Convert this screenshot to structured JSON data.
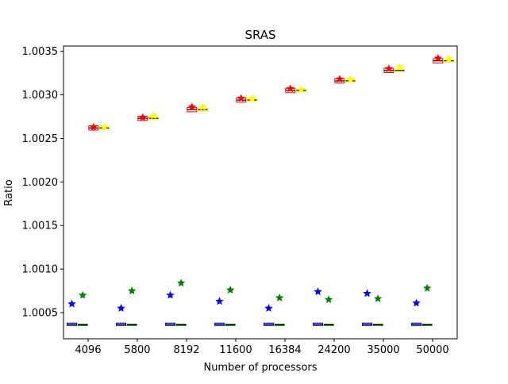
{
  "chart_data": {
    "type": "box",
    "title": "SRAS",
    "xlabel": "Number of processors",
    "ylabel": "Ratio",
    "categories": [
      "4096",
      "5800",
      "8192",
      "11600",
      "16384",
      "24200",
      "35000",
      "50000"
    ],
    "ylim": [
      1.0002,
      1.00356
    ],
    "yticks": [
      1.0005,
      1.001,
      1.0015,
      1.002,
      1.0025,
      1.003,
      1.0035
    ],
    "ytick_labels": [
      "1.0005",
      "1.0010",
      "1.0015",
      "1.0020",
      "1.0025",
      "1.0030",
      "1.0035"
    ],
    "grid": false,
    "series": [
      {
        "color": "#0000ff",
        "offset": -0.33,
        "box_median": [
          1.000366,
          1.000366,
          1.000366,
          1.000366,
          1.000366,
          1.000366,
          1.000366,
          1.000366
        ],
        "box_half_range": 1.4e-05,
        "outlier": [
          1.0006,
          1.00055,
          1.0007,
          1.00063,
          1.00055,
          1.00074,
          1.00072,
          1.00061
        ]
      },
      {
        "color": "#008000",
        "offset": -0.11,
        "box_median": [
          1.00036,
          1.00036,
          1.00036,
          1.00036,
          1.00036,
          1.00036,
          1.00036,
          1.00036
        ],
        "box_half_range": 8e-06,
        "outlier": [
          1.0007,
          1.00075,
          1.00084,
          1.00076,
          1.00067,
          1.00065,
          1.00066,
          1.00078
        ]
      },
      {
        "color": "#ff0000",
        "offset": 0.11,
        "box_median": [
          1.00262,
          1.00273,
          1.00283,
          1.00294,
          1.00305,
          1.00316,
          1.00328,
          1.00339
        ],
        "box_half_range": 2.5e-05,
        "outlier": [
          1.00263,
          1.00274,
          1.00286,
          1.00296,
          1.00307,
          1.00318,
          1.0033,
          1.00342
        ]
      },
      {
        "color": "#ffff00",
        "offset": 0.33,
        "box_median": [
          1.00262,
          1.00273,
          1.00283,
          1.00294,
          1.00305,
          1.00316,
          1.00328,
          1.00339
        ],
        "box_half_range": 1.5e-05,
        "outlier": [
          1.00263,
          1.00276,
          1.00286,
          1.00296,
          1.00306,
          1.00318,
          1.00332,
          1.00341
        ]
      }
    ]
  }
}
